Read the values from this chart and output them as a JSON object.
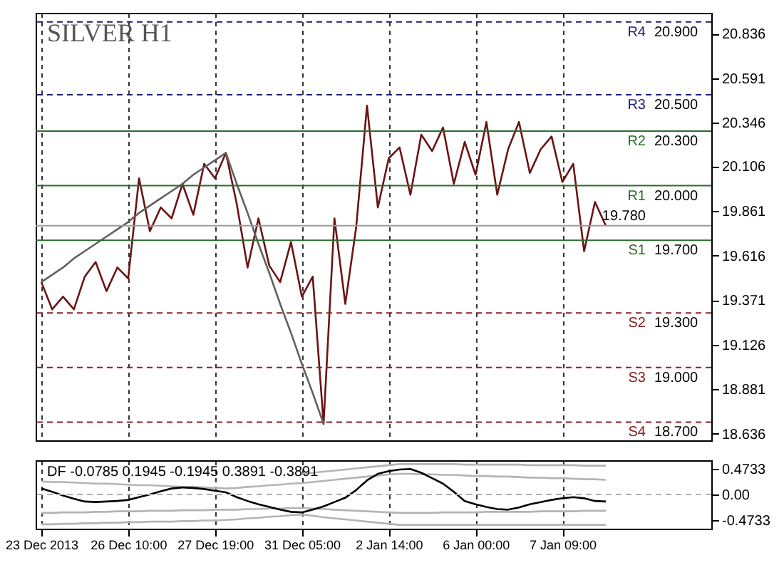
{
  "chart_data": [
    {
      "type": "line",
      "title": "SILVER H1",
      "categories": [
        null,
        null,
        null,
        null,
        null,
        null,
        null,
        null,
        null,
        null,
        null,
        null,
        null,
        null,
        null,
        null,
        null,
        null,
        null,
        null,
        null,
        null,
        null,
        null,
        null,
        null,
        null,
        null,
        null,
        null,
        null,
        null,
        null,
        null,
        null,
        null,
        null,
        null,
        null,
        null,
        null,
        null,
        null,
        null,
        null,
        null,
        null,
        null,
        null,
        null,
        null,
        null,
        null
      ],
      "ylim": [
        18.6,
        20.95
      ],
      "yticks": [
        18.636,
        18.881,
        19.126,
        19.371,
        19.616,
        19.861,
        20.106,
        20.346,
        20.591,
        20.836
      ],
      "tick_labels": "y",
      "grid": "x",
      "line_style": "solid",
      "annotations": [
        {
          "text": "20.900",
          "y": 20.9
        },
        {
          "text": "20.500",
          "y": 20.5
        },
        {
          "text": "20.300",
          "y": 20.3
        },
        {
          "text": "20.000",
          "y": 20.0
        },
        {
          "text": "19.700",
          "y": 19.7
        },
        {
          "text": "19.300",
          "y": 19.3
        },
        {
          "text": "19.000",
          "y": 19.0
        },
        {
          "text": "18.700",
          "y": 18.7
        }
      ],
      "series": [
        {
          "color": "#6b1414",
          "values": [
            19.47,
            19.32,
            19.39,
            19.32,
            19.5,
            19.58,
            19.42,
            19.55,
            19.49,
            20.04,
            19.75,
            19.88,
            19.82,
            20.01,
            19.84,
            20.12,
            20.04,
            20.18,
            19.9,
            19.55,
            19.82,
            19.56,
            19.47,
            19.69,
            19.39,
            19.5,
            18.69,
            19.82,
            19.35,
            19.77,
            20.44,
            19.88,
            20.15,
            20.21,
            19.95,
            20.28,
            20.19,
            20.32,
            20.01,
            20.24,
            20.06,
            20.35,
            19.95,
            20.2,
            20.35,
            20.07,
            20.2,
            20.27,
            20.02,
            20.12,
            19.64,
            19.91,
            19.78
          ]
        },
        {
          "color": "#606060",
          "values": [
            19.47,
            19.51,
            19.55,
            19.6,
            19.64,
            19.68,
            19.72,
            19.76,
            19.8,
            19.85,
            19.89,
            19.93,
            19.97,
            20.01,
            20.06,
            20.1,
            20.14,
            20.18,
            null,
            null,
            null,
            null,
            null,
            null,
            null,
            null,
            null,
            null,
            null,
            null,
            null,
            null,
            null,
            null,
            null,
            null,
            null,
            null,
            null,
            null,
            null,
            null,
            null,
            null,
            null,
            null,
            null,
            null,
            null,
            null,
            null,
            null,
            null
          ]
        },
        {
          "color": "#606060",
          "values": [
            null,
            null,
            null,
            null,
            null,
            null,
            null,
            null,
            null,
            null,
            null,
            null,
            null,
            null,
            null,
            null,
            null,
            20.18,
            20.01,
            19.85,
            19.68,
            19.52,
            19.35,
            19.19,
            19.02,
            18.86,
            18.69,
            null,
            null,
            null,
            null,
            null,
            null,
            null,
            null,
            null,
            null,
            null,
            null,
            null,
            null,
            null,
            null,
            null,
            null,
            null,
            null,
            null,
            null,
            null,
            null,
            null,
            null
          ]
        }
      ],
      "ref_lines": [
        {
          "axis": "y",
          "value": 20.9,
          "label": "R4",
          "color": "#1f1f7a",
          "line_style": "dashed"
        },
        {
          "axis": "y",
          "value": 20.5,
          "label": "R3",
          "color": "#1f1f7a",
          "line_style": "dashed"
        },
        {
          "axis": "y",
          "value": 20.3,
          "label": "R2",
          "color": "#2e6b2e",
          "line_style": "solid"
        },
        {
          "axis": "y",
          "value": 20.0,
          "label": "R1",
          "color": "#2e6b2e",
          "line_style": "solid"
        },
        {
          "axis": "y",
          "value": 19.78,
          "label": "19.780",
          "color": "#9a9a9a",
          "line_style": "solid"
        },
        {
          "axis": "y",
          "value": 19.7,
          "label": "S1",
          "color": "#2e6b2e",
          "line_style": "solid"
        },
        {
          "axis": "y",
          "value": 19.3,
          "label": "S2",
          "color": "#8b2020",
          "line_style": "dashed"
        },
        {
          "axis": "y",
          "value": 19.0,
          "label": "S3",
          "color": "#8b2020",
          "line_style": "dashed"
        },
        {
          "axis": "y",
          "value": 18.7,
          "label": "S4",
          "color": "#8b2020",
          "line_style": "dashed"
        }
      ]
    },
    {
      "type": "line",
      "title": "DF -0.0785 0.1945 -0.1945 0.3891 -0.3891",
      "categories": [
        "23 Dec 2013",
        null,
        null,
        null,
        null,
        null,
        null,
        null,
        "26 Dec 10:00",
        null,
        null,
        null,
        null,
        null,
        null,
        null,
        "27 Dec 19:00",
        null,
        null,
        null,
        null,
        null,
        null,
        null,
        "31 Dec 05:00",
        null,
        null,
        null,
        null,
        null,
        null,
        null,
        "2 Jan 14:00",
        null,
        null,
        null,
        null,
        null,
        null,
        null,
        "6 Jan 00:00",
        null,
        null,
        null,
        null,
        null,
        null,
        null,
        "7 Jan 09:00",
        null,
        null,
        null,
        null
      ],
      "ylim": [
        -0.63,
        0.63
      ],
      "yticks": [
        -0.4733,
        {
          "value": 0,
          "label": "0.00"
        },
        0.4733
      ],
      "grid": "x",
      "line_style": "solid",
      "series": [
        {
          "color": "#b4b4b4",
          "values": [
            null,
            null,
            null,
            null,
            null,
            null,
            null,
            null,
            null,
            null,
            null,
            null,
            null,
            null,
            null,
            null,
            null,
            null,
            null,
            null,
            null,
            null,
            null,
            null,
            0.38,
            0.4,
            0.42,
            0.44,
            0.46,
            0.48,
            0.5,
            0.52,
            0.54,
            0.56,
            0.56,
            0.56,
            0.56,
            0.56,
            0.56,
            0.55,
            0.55,
            0.55,
            0.55,
            0.55,
            0.55,
            0.54,
            0.54,
            0.54,
            0.54,
            0.54,
            0.53,
            0.53,
            0.53
          ]
        },
        {
          "color": "#b4b4b4",
          "values": [
            0.24,
            0.23,
            0.23,
            0.22,
            0.21,
            0.2,
            0.2,
            0.19,
            0.18,
            0.17,
            0.17,
            0.16,
            0.15,
            0.14,
            0.14,
            0.13,
            0.12,
            0.11,
            0.12,
            0.14,
            0.15,
            0.17,
            0.18,
            0.2,
            0.21,
            0.23,
            0.25,
            0.27,
            0.29,
            0.31,
            0.33,
            0.35,
            0.37,
            0.38,
            0.38,
            0.37,
            0.37,
            0.36,
            0.36,
            0.35,
            0.34,
            0.34,
            0.33,
            0.33,
            0.32,
            0.31,
            0.31,
            0.3,
            0.3,
            0.29,
            0.28,
            0.28,
            0.27
          ]
        },
        {
          "color": "#b4b4b4",
          "values": [
            -0.34,
            -0.34,
            -0.33,
            -0.33,
            -0.33,
            -0.32,
            -0.32,
            -0.31,
            -0.31,
            -0.31,
            -0.3,
            -0.3,
            -0.3,
            -0.29,
            -0.29,
            -0.29,
            -0.28,
            -0.28,
            -0.28,
            -0.27,
            -0.27,
            -0.26,
            -0.26,
            -0.25,
            -0.25,
            -0.26,
            -0.27,
            -0.28,
            -0.29,
            -0.3,
            -0.31,
            -0.32,
            -0.33,
            -0.34,
            -0.34,
            -0.34,
            -0.34,
            -0.33,
            -0.33,
            -0.33,
            -0.33,
            -0.32,
            -0.32,
            -0.32,
            -0.32,
            -0.32,
            -0.31,
            -0.31,
            -0.31,
            -0.31,
            -0.3,
            -0.3,
            -0.3
          ]
        },
        {
          "color": "#b4b4b4",
          "values": [
            -0.55,
            -0.55,
            -0.54,
            -0.54,
            -0.53,
            -0.53,
            -0.52,
            -0.52,
            -0.51,
            -0.51,
            -0.5,
            -0.5,
            -0.5,
            -0.49,
            -0.49,
            -0.48,
            -0.48,
            -0.47,
            -0.46,
            -0.44,
            -0.43,
            -0.41,
            -0.4,
            -0.38,
            -0.37,
            -0.39,
            -0.42,
            -0.44,
            -0.46,
            -0.48,
            -0.5,
            -0.52,
            -0.54,
            -0.56,
            -0.56,
            -0.56,
            -0.56,
            -0.56,
            -0.56,
            -0.56,
            -0.56,
            -0.56,
            -0.56,
            -0.56,
            -0.56,
            -0.56,
            -0.56,
            -0.56,
            -0.56,
            -0.56,
            -0.56,
            -0.56,
            -0.56
          ]
        },
        {
          "color": "#000000",
          "values": [
            0.11,
            0.05,
            -0.02,
            -0.08,
            -0.13,
            -0.14,
            -0.13,
            -0.12,
            -0.1,
            -0.05,
            0.0,
            0.06,
            0.11,
            0.13,
            0.12,
            0.1,
            0.07,
            0.04,
            -0.05,
            -0.12,
            -0.18,
            -0.23,
            -0.28,
            -0.32,
            -0.33,
            -0.28,
            -0.22,
            -0.14,
            -0.06,
            0.08,
            0.26,
            0.38,
            0.43,
            0.46,
            0.47,
            0.4,
            0.3,
            0.2,
            0.05,
            -0.12,
            -0.18,
            -0.23,
            -0.27,
            -0.28,
            -0.24,
            -0.18,
            -0.14,
            -0.1,
            -0.07,
            -0.05,
            -0.07,
            -0.12,
            -0.13
          ]
        }
      ],
      "ref_lines": [
        {
          "axis": "y",
          "value": 0,
          "label": null,
          "color": "#b0b0b0",
          "line_style": "dashed"
        }
      ]
    }
  ]
}
